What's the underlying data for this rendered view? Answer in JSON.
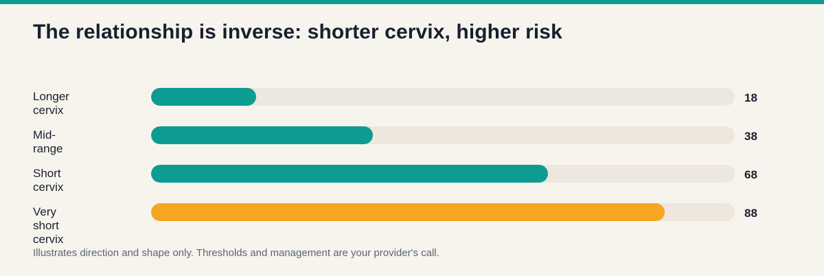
{
  "title": "The relationship is inverse: shorter cervix, higher risk",
  "footnote": "Illustrates direction and shape only. Thresholds and management are your provider's call.",
  "colors": {
    "accent": "#0d9c92",
    "highlight": "#f5a623",
    "track": "#ede7de",
    "background": "#f7f4ee"
  },
  "chart_data": {
    "type": "bar",
    "orientation": "horizontal",
    "title": "The relationship is inverse: shorter cervix, higher risk",
    "categories": [
      "Longer cervix",
      "Mid-range",
      "Short cervix",
      "Very short cervix"
    ],
    "values": [
      18,
      38,
      68,
      88
    ],
    "value_labels": [
      "18",
      "38",
      "68",
      "88"
    ],
    "bar_colors": [
      "#0d9c92",
      "#0d9c92",
      "#0d9c92",
      "#f5a623"
    ],
    "xlim": [
      0,
      100
    ],
    "grid": false,
    "legend": "none"
  }
}
